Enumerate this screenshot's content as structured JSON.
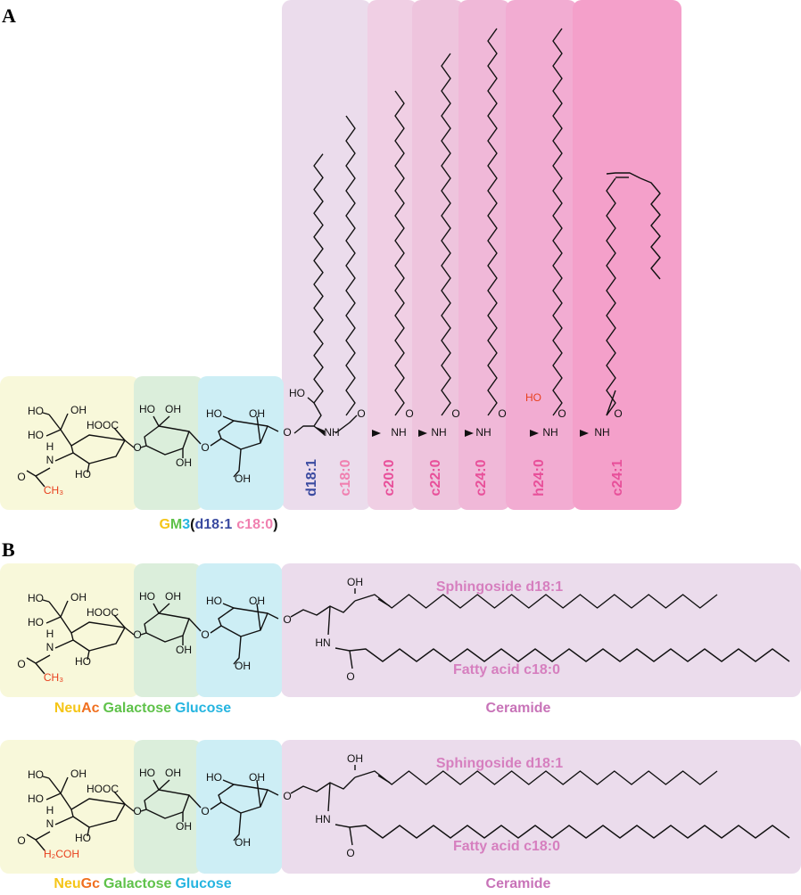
{
  "panel_a": {
    "label": "A",
    "sugar_atoms": [
      "HO",
      "OH",
      "HO",
      "HOOC",
      "H",
      "N",
      "O",
      "CH₃",
      "HO",
      "O",
      "HO",
      "OH",
      "OH",
      "O",
      "HO",
      "OH",
      "OH",
      "O"
    ],
    "columns": [
      {
        "name": "d18:1",
        "atoms": [
          "HO",
          "NH"
        ]
      },
      {
        "name": "c18:0",
        "atoms": [
          "O"
        ]
      },
      {
        "name": "c20:0",
        "atoms": [
          "NH",
          "O"
        ]
      },
      {
        "name": "c22:0",
        "atoms": [
          "NH",
          "O"
        ]
      },
      {
        "name": "c24:0",
        "atoms": [
          "NH",
          "O"
        ]
      },
      {
        "name": "h24:0",
        "atoms": [
          "HO",
          "NH",
          "O"
        ]
      },
      {
        "name": "c24:1",
        "atoms": [
          "NH",
          "O"
        ]
      }
    ],
    "caption": [
      "G",
      "M",
      "3",
      "(",
      "d18:1",
      "c18:0",
      ")"
    ]
  },
  "panel_b": {
    "label": "B",
    "rows": [
      {
        "sugar_atoms": [
          "HO",
          "OH",
          "HO",
          "HOOC",
          "H",
          "N",
          "O",
          "CH₃",
          "HO",
          "O",
          "HO",
          "OH",
          "OH",
          "O",
          "HO",
          "OH",
          "OH",
          "O"
        ],
        "ceramide_atoms": [
          "OH",
          "HN",
          "O"
        ],
        "sphingoside": "Sphingoside d18:1",
        "fatty_acid": "Fatty acid c18:0",
        "legend": [
          "Neu",
          "Ac",
          "Galactose",
          "Glucose"
        ],
        "ceramide": "Ceramide"
      },
      {
        "sugar_atoms": [
          "HO",
          "OH",
          "HO",
          "HOOC",
          "H",
          "N",
          "O",
          "H₂C",
          "HO",
          "O",
          "HO",
          "OH",
          "OH",
          "O",
          "HO",
          "OH",
          "OH",
          "O",
          "OH"
        ],
        "ceramide_atoms": [
          "OH",
          "HN",
          "O"
        ],
        "sphingoside": "Sphingoside d18:1",
        "fatty_acid": "Fatty acid c18:0",
        "legend": [
          "Neu",
          "Gc",
          "Galactose",
          "Glucose"
        ],
        "ceramide": "Ceramide"
      }
    ]
  }
}
